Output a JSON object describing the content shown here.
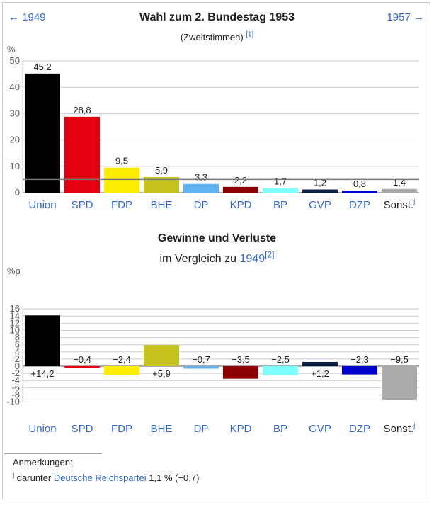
{
  "nav": {
    "prev": "← 1949",
    "next": "1957 →"
  },
  "chart1": {
    "title": "Wahl zum 2. Bundestag 1953",
    "subtitle": "(Zweitstimmen)",
    "ref": "[1]"
  },
  "chart2": {
    "title": "Gewinne und Verluste",
    "subtitle_prefix": "im Vergleich zu",
    "subtitle_link": "1949",
    "ref": "[2]"
  },
  "notes": {
    "title": "Anmerkungen:",
    "marker": "j",
    "prefix": "darunter",
    "link": "Deutsche Reichspartei",
    "suffix": "1,1 % (−0,7)"
  },
  "chart_data": [
    {
      "type": "bar",
      "title": "Wahl zum 2. Bundestag 1953",
      "subtitle": "(Zweitstimmen)",
      "ylabel": "%",
      "ylim": [
        0,
        50
      ],
      "yticks": [
        0,
        10,
        20,
        30,
        40,
        50
      ],
      "grid": true,
      "threshold": 5,
      "categories": [
        "Union",
        "SPD",
        "FDP",
        "BHE",
        "DP",
        "KPD",
        "BP",
        "GVP",
        "DZP",
        "Sonst."
      ],
      "category_sup": [
        "",
        "",
        "",
        "",
        "",
        "",
        "",
        "",
        "",
        "j"
      ],
      "values": [
        45.2,
        28.8,
        9.5,
        5.9,
        3.3,
        2.2,
        1.7,
        1.2,
        0.8,
        1.4
      ],
      "value_labels": [
        "45,2",
        "28,8",
        "9,5",
        "5,9",
        "3,3",
        "2,2",
        "1,7",
        "1,2",
        "0,8",
        "1,4"
      ],
      "colors": [
        "#000000",
        "#e3000f",
        "#ffed00",
        "#c5c31c",
        "#5eb3f0",
        "#8b0000",
        "#7fffff",
        "#0a1f44",
        "#0000cc",
        "#aaaaaa"
      ]
    },
    {
      "type": "bar",
      "title": "Gewinne und Verluste",
      "subtitle": "im Vergleich zu 1949",
      "ylabel": "%p",
      "ylim": [
        -10,
        16
      ],
      "yticks": [
        -10,
        -8,
        -6,
        -4,
        -2,
        0,
        2,
        4,
        6,
        8,
        10,
        12,
        14,
        16
      ],
      "grid": true,
      "categories": [
        "Union",
        "SPD",
        "FDP",
        "BHE",
        "DP",
        "KPD",
        "BP",
        "GVP",
        "DZP",
        "Sonst."
      ],
      "category_sup": [
        "",
        "",
        "",
        "",
        "",
        "",
        "",
        "",
        "",
        "j"
      ],
      "values": [
        14.2,
        -0.4,
        -2.4,
        5.9,
        -0.7,
        -3.5,
        -2.5,
        1.2,
        -2.3,
        -9.5
      ],
      "value_labels": [
        "+14,2",
        "−0,4",
        "−2,4",
        "+5,9",
        "−0,7",
        "−3,5",
        "−2,5",
        "+1,2",
        "−2,3",
        "−9,5"
      ],
      "colors": [
        "#000000",
        "#e3000f",
        "#ffed00",
        "#c5c31c",
        "#5eb3f0",
        "#8b0000",
        "#7fffff",
        "#0a1f44",
        "#0000cc",
        "#aaaaaa"
      ]
    }
  ]
}
